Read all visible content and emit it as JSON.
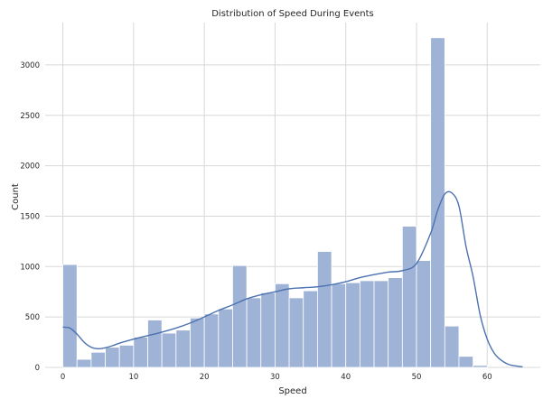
{
  "chart_data": {
    "type": "bar",
    "title": "Distribution of Speed During Events",
    "xlabel": "Speed",
    "ylabel": "Count",
    "xlim": [
      -2.5,
      67.5
    ],
    "ylim": [
      0,
      3420
    ],
    "xticks": [
      0,
      10,
      20,
      30,
      40,
      50,
      60
    ],
    "yticks": [
      0,
      500,
      1000,
      1500,
      2000,
      2500,
      3000
    ],
    "grid": true,
    "bar_color": "#9fb3d6",
    "kde_color": "#4c72b0",
    "bins": [
      {
        "x0": 0.0,
        "x1": 2.0,
        "count": 1020
      },
      {
        "x0": 2.0,
        "x1": 4.0,
        "count": 80
      },
      {
        "x0": 4.0,
        "x1": 6.0,
        "count": 150
      },
      {
        "x0": 6.0,
        "x1": 8.0,
        "count": 200
      },
      {
        "x0": 8.0,
        "x1": 10.0,
        "count": 220
      },
      {
        "x0": 10.0,
        "x1": 12.0,
        "count": 300
      },
      {
        "x0": 12.0,
        "x1": 14.0,
        "count": 470
      },
      {
        "x0": 14.0,
        "x1": 16.0,
        "count": 340
      },
      {
        "x0": 16.0,
        "x1": 18.0,
        "count": 370
      },
      {
        "x0": 18.0,
        "x1": 20.0,
        "count": 490
      },
      {
        "x0": 20.0,
        "x1": 22.0,
        "count": 530
      },
      {
        "x0": 22.0,
        "x1": 24.0,
        "count": 580
      },
      {
        "x0": 24.0,
        "x1": 26.0,
        "count": 1010
      },
      {
        "x0": 26.0,
        "x1": 28.0,
        "count": 690
      },
      {
        "x0": 28.0,
        "x1": 30.0,
        "count": 740
      },
      {
        "x0": 30.0,
        "x1": 32.0,
        "count": 830
      },
      {
        "x0": 32.0,
        "x1": 34.0,
        "count": 690
      },
      {
        "x0": 34.0,
        "x1": 36.0,
        "count": 760
      },
      {
        "x0": 36.0,
        "x1": 38.0,
        "count": 1150
      },
      {
        "x0": 38.0,
        "x1": 40.0,
        "count": 830
      },
      {
        "x0": 40.0,
        "x1": 42.0,
        "count": 840
      },
      {
        "x0": 42.0,
        "x1": 44.0,
        "count": 860
      },
      {
        "x0": 44.0,
        "x1": 46.0,
        "count": 860
      },
      {
        "x0": 46.0,
        "x1": 48.0,
        "count": 890
      },
      {
        "x0": 48.0,
        "x1": 50.0,
        "count": 1400
      },
      {
        "x0": 50.0,
        "x1": 52.0,
        "count": 1060
      },
      {
        "x0": 52.0,
        "x1": 54.0,
        "count": 3270
      },
      {
        "x0": 54.0,
        "x1": 56.0,
        "count": 410
      },
      {
        "x0": 56.0,
        "x1": 58.0,
        "count": 110
      },
      {
        "x0": 58.0,
        "x1": 60.0,
        "count": 20
      }
    ],
    "kde": {
      "x": [
        0,
        1,
        2,
        3,
        4,
        5,
        6,
        7,
        8,
        10,
        12,
        14,
        16,
        18,
        20,
        22,
        24,
        26,
        28,
        30,
        32,
        34,
        36,
        38,
        40,
        42,
        44,
        46,
        48,
        50,
        52,
        53,
        54,
        55,
        56,
        57,
        58,
        59,
        60,
        61,
        62,
        63,
        64,
        65
      ],
      "y": [
        400,
        390,
        330,
        250,
        200,
        185,
        195,
        215,
        240,
        280,
        315,
        350,
        390,
        440,
        500,
        565,
        620,
        680,
        720,
        750,
        780,
        790,
        800,
        820,
        850,
        890,
        920,
        945,
        960,
        1030,
        1330,
        1560,
        1720,
        1730,
        1600,
        1200,
        900,
        520,
        280,
        140,
        70,
        30,
        15,
        5
      ]
    }
  }
}
